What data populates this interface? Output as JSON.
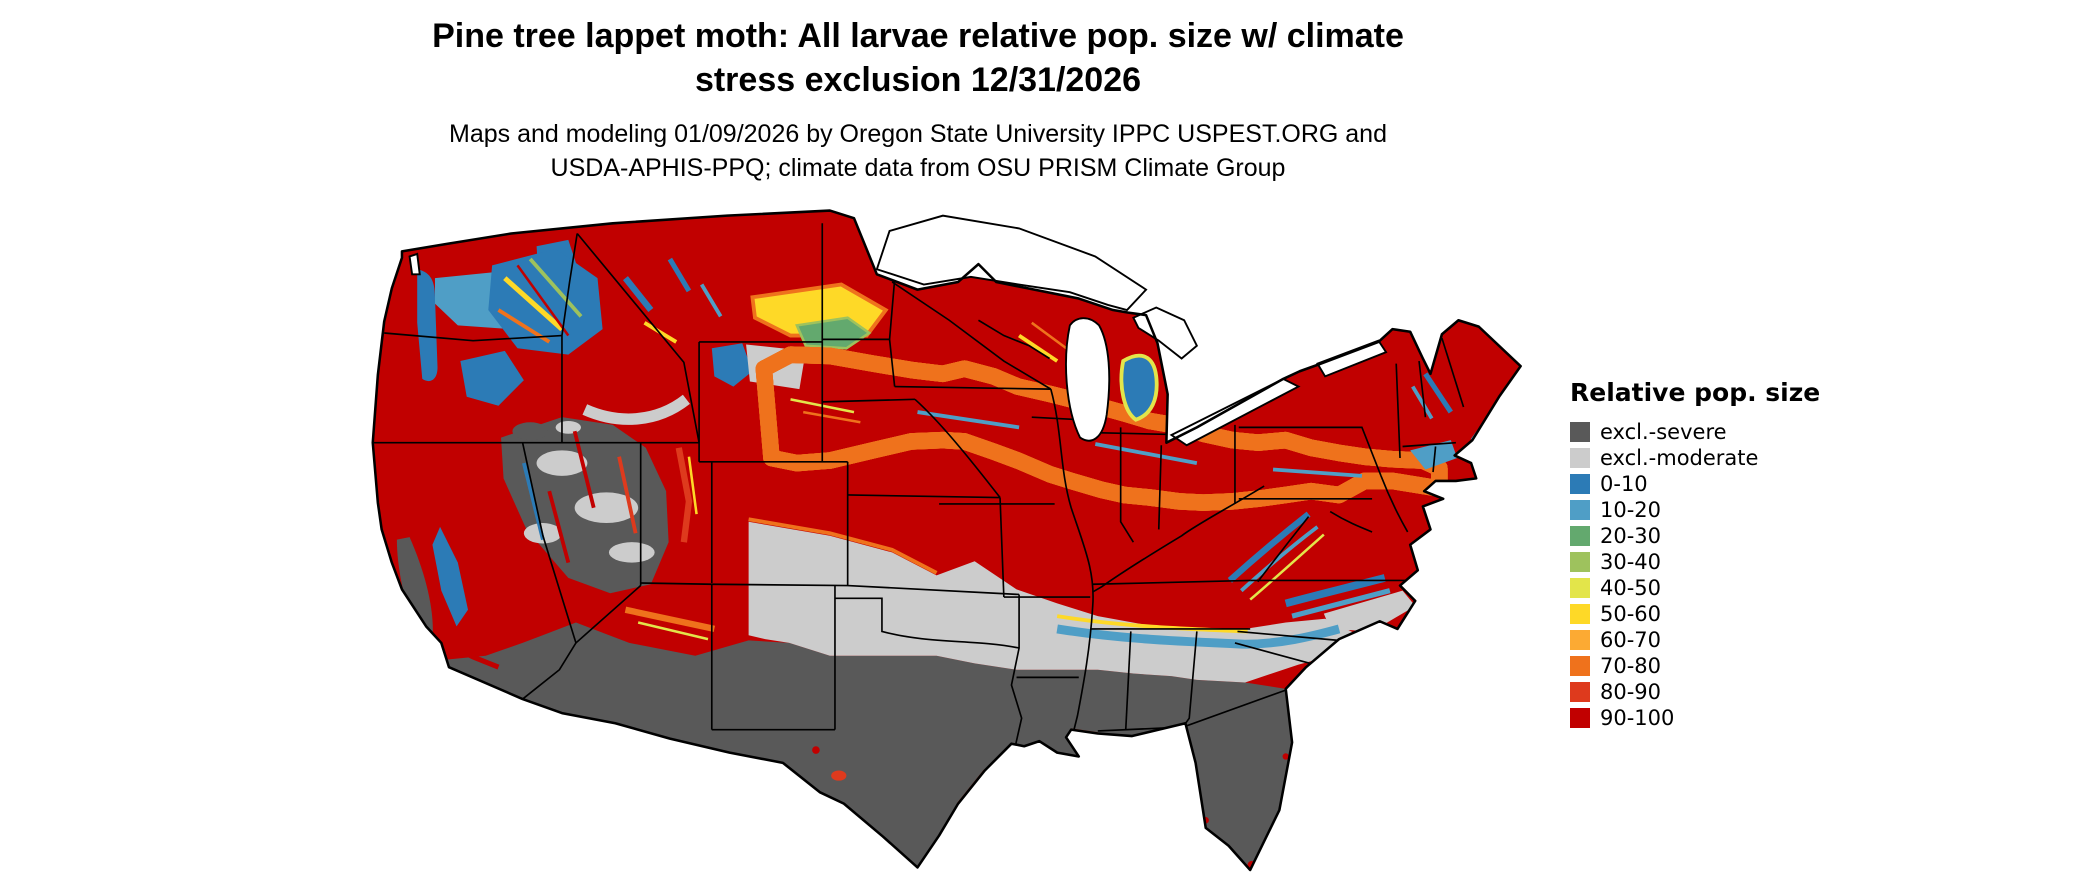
{
  "figure": {
    "title_line1": "Pine tree lappet moth: All larvae relative pop. size w/ climate",
    "title_line2": "stress exclusion 12/31/2026",
    "subtitle_line1": "Maps and modeling 01/09/2026 by Oregon State University IPPC USPEST.ORG and",
    "subtitle_line2": "USDA-APHIS-PPQ; climate data from OSU PRISM Climate Group"
  },
  "legend": {
    "title": "Relative pop. size",
    "items": [
      {
        "label": "excl.-severe",
        "color": "#595959"
      },
      {
        "label": "excl.-moderate",
        "color": "#cccccc"
      },
      {
        "label": "0-10",
        "color": "#2c7bb6"
      },
      {
        "label": "10-20",
        "color": "#4f9ec6"
      },
      {
        "label": "20-30",
        "color": "#63a96e"
      },
      {
        "label": "30-40",
        "color": "#9ec25d"
      },
      {
        "label": "40-50",
        "color": "#e3e54a"
      },
      {
        "label": "50-60",
        "color": "#fed927"
      },
      {
        "label": "60-70",
        "color": "#fcaa33"
      },
      {
        "label": "70-80",
        "color": "#ef721c"
      },
      {
        "label": "80-90",
        "color": "#de3a1d"
      },
      {
        "label": "90-100",
        "color": "#c10000"
      }
    ]
  }
}
